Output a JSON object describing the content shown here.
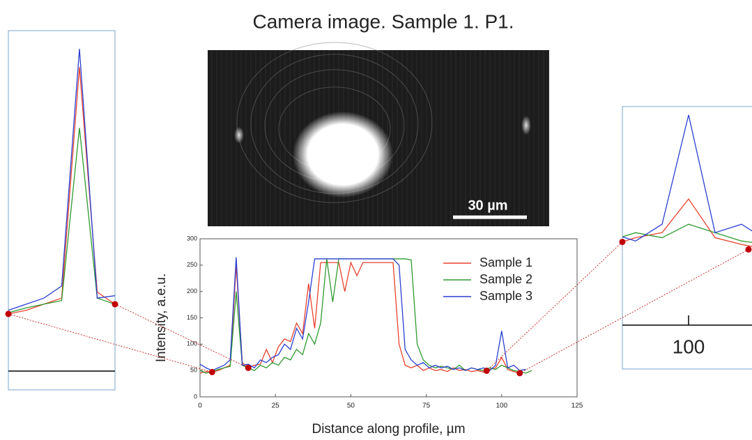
{
  "camera_image": {
    "title": "Camera image. Sample 1. P1.",
    "scale_label": "30 µm"
  },
  "chart_data": {
    "type": "line",
    "xlabel": "Distance along profile, µm",
    "ylabel": "Intensity, a.e.u.",
    "x": [
      0,
      2,
      4,
      6,
      8,
      10,
      12,
      14,
      16,
      18,
      20,
      22,
      24,
      26,
      28,
      30,
      32,
      34,
      36,
      38,
      40,
      42,
      44,
      46,
      48,
      50,
      52,
      54,
      56,
      58,
      60,
      62,
      64,
      66,
      68,
      70,
      72,
      74,
      76,
      78,
      80,
      82,
      84,
      86,
      88,
      90,
      92,
      94,
      96,
      98,
      100,
      102,
      104,
      106,
      108,
      110
    ],
    "series": [
      {
        "name": "Sample 1",
        "color": "#e8412c",
        "values": [
          45,
          48,
          47,
          50,
          55,
          60,
          250,
          65,
          55,
          60,
          62,
          90,
          65,
          95,
          110,
          105,
          140,
          120,
          215,
          130,
          255,
          255,
          255,
          255,
          200,
          255,
          230,
          255,
          255,
          255,
          255,
          255,
          255,
          100,
          60,
          55,
          60,
          50,
          55,
          50,
          52,
          48,
          55,
          50,
          52,
          48,
          50,
          47,
          52,
          55,
          75,
          52,
          48,
          45,
          null,
          null
        ]
      },
      {
        "name": "Sample 2",
        "color": "#2e9a2e",
        "values": [
          50,
          45,
          48,
          52,
          55,
          58,
          200,
          60,
          55,
          50,
          60,
          55,
          65,
          60,
          75,
          70,
          90,
          80,
          120,
          100,
          140,
          262,
          180,
          262,
          262,
          262,
          262,
          262,
          262,
          262,
          262,
          262,
          262,
          262,
          262,
          260,
          100,
          70,
          60,
          55,
          58,
          55,
          52,
          60,
          50,
          55,
          52,
          50,
          55,
          52,
          60,
          55,
          50,
          48,
          45,
          50
        ]
      },
      {
        "name": "Sample 3",
        "color": "#2a3fd0",
        "values": [
          62,
          55,
          50,
          55,
          60,
          70,
          265,
          60,
          62,
          55,
          70,
          65,
          75,
          80,
          100,
          90,
          130,
          110,
          180,
          262,
          262,
          262,
          262,
          262,
          262,
          262,
          262,
          262,
          262,
          262,
          262,
          262,
          262,
          250,
          90,
          70,
          60,
          65,
          55,
          60,
          55,
          58,
          52,
          55,
          50,
          55,
          52,
          55,
          50,
          60,
          125,
          55,
          60,
          50,
          52,
          null
        ]
      }
    ],
    "xlim": [
      0,
      125
    ],
    "xticks": [
      0,
      25,
      50,
      75,
      100,
      125
    ],
    "ylim": [
      0,
      300
    ],
    "yticks": [
      0,
      50,
      100,
      150,
      200,
      250,
      300
    ],
    "grid": false,
    "legend": "upper right",
    "insets": [
      {
        "xlim": [
          4,
          16
        ],
        "ylim": [
          0,
          280
        ]
      },
      {
        "xlim": [
          95,
          106
        ],
        "ylim": [
          0,
          130
        ],
        "xticks": [
          100
        ]
      }
    ]
  }
}
